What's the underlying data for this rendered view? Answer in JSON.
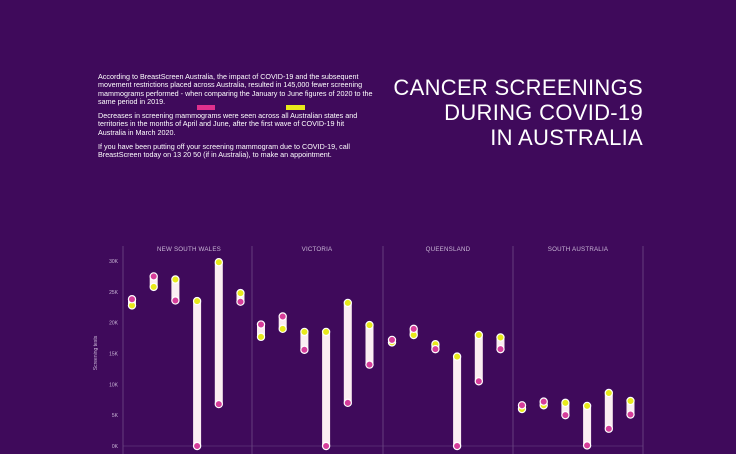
{
  "intro": {
    "p1": "According to BreastScreen Australia, the impact of COVID-19 and the subsequent movement restrictions placed across Australia, resulted in 145,000 fewer screening mammograms performed - when comparing the January to June figures of 2020 to the same period in 2019.",
    "p2": "Decreases in screening mammograms were seen across all Australian states and territories in the months of April and June, after the first wave of COVID-19 hit Australia in March 2020.",
    "p3": "If you have been putting off your screening mammogram due to COVID-19, call BreastScreen today on 13 20 50 (if in Australia), to make an appointment."
  },
  "title_lines": [
    "CANCER SCREENINGS",
    "DURING COVID-19",
    "IN AUSTRALIA"
  ],
  "colors": {
    "background": "#3f0a5b",
    "year_2019": "#e8ea1b",
    "year_2020": "#d63d9a",
    "bar": "#fbeef2",
    "text": "#ffffff",
    "axis_text": "#c9b6d6",
    "divider": "#6e4a86"
  },
  "chart_data": {
    "type": "range-dot",
    "ylabel": "Screening tests",
    "yticks": [
      "0K",
      "5K",
      "10K",
      "15K",
      "20K",
      "25K",
      "30K"
    ],
    "ylim": [
      0,
      31000
    ],
    "grid": false,
    "panels": [
      {
        "name": "NEW SOUTH WALES",
        "points": [
          {
            "y2019": 22800,
            "y2020": 23800
          },
          {
            "y2019": 25800,
            "y2020": 27500
          },
          {
            "y2019": 27000,
            "y2020": 23600
          },
          {
            "y2019": 23500,
            "y2020": 0
          },
          {
            "y2019": 29800,
            "y2020": 6800
          },
          {
            "y2019": 24800,
            "y2020": 23400
          }
        ]
      },
      {
        "name": "VICTORIA",
        "points": [
          {
            "y2019": 17700,
            "y2020": 19700
          },
          {
            "y2019": 19000,
            "y2020": 21000
          },
          {
            "y2019": 18500,
            "y2020": 15600
          },
          {
            "y2019": 18500,
            "y2020": 0
          },
          {
            "y2019": 23200,
            "y2020": 7000
          },
          {
            "y2019": 19600,
            "y2020": 13200
          }
        ]
      },
      {
        "name": "QUEENSLAND",
        "points": [
          {
            "y2019": 16800,
            "y2020": 17200
          },
          {
            "y2019": 18000,
            "y2020": 19000
          },
          {
            "y2019": 16500,
            "y2020": 15700
          },
          {
            "y2019": 14500,
            "y2020": 0
          },
          {
            "y2019": 18000,
            "y2020": 10500
          },
          {
            "y2019": 17600,
            "y2020": 15700
          }
        ]
      },
      {
        "name": "SOUTH AUSTRALIA",
        "points": [
          {
            "y2019": 6000,
            "y2020": 6600
          },
          {
            "y2019": 6600,
            "y2020": 7200
          },
          {
            "y2019": 7000,
            "y2020": 5000
          },
          {
            "y2019": 6500,
            "y2020": 100
          },
          {
            "y2019": 8600,
            "y2020": 2800
          },
          {
            "y2019": 7300,
            "y2020": 5100
          }
        ]
      }
    ]
  }
}
